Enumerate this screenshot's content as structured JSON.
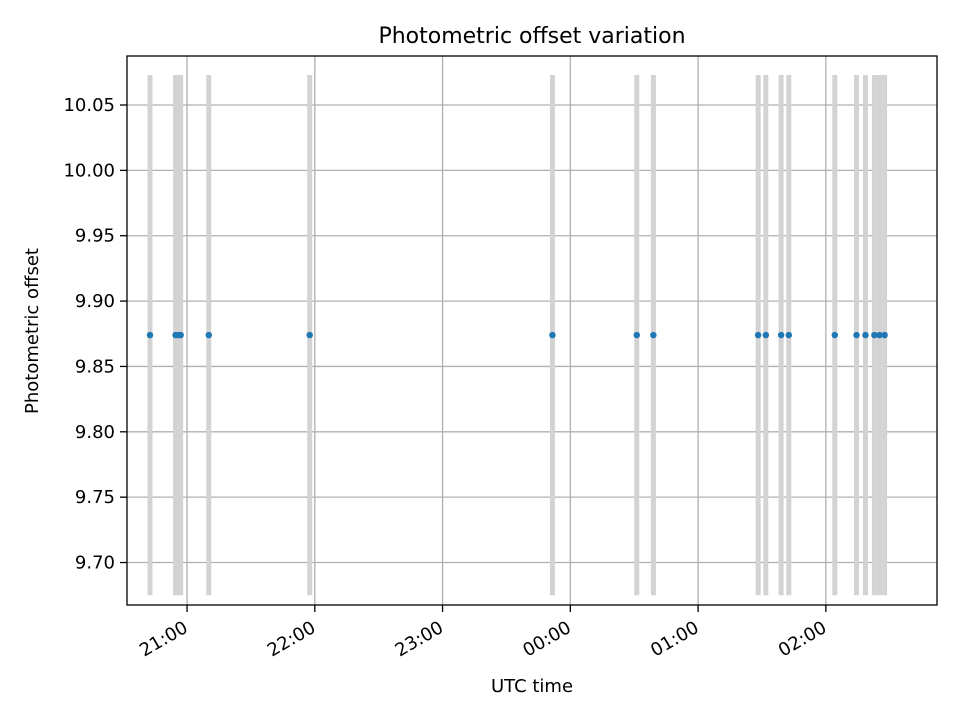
{
  "chart_data": {
    "type": "scatter",
    "title": "Photometric offset variation",
    "xlabel": "UTC time",
    "ylabel": "Photometric offset",
    "xlim_hours": [
      20.53,
      26.87
    ],
    "ylim": [
      9.6675,
      10.0875
    ],
    "xticks": [
      {
        "value": 21.0,
        "label": "21:00"
      },
      {
        "value": 22.0,
        "label": "22:00"
      },
      {
        "value": 23.0,
        "label": "23:00"
      },
      {
        "value": 24.0,
        "label": "00:00"
      },
      {
        "value": 25.0,
        "label": "01:00"
      },
      {
        "value": 26.0,
        "label": "02:00"
      }
    ],
    "yticks": [
      {
        "value": 9.7,
        "label": "9.70"
      },
      {
        "value": 9.75,
        "label": "9.75"
      },
      {
        "value": 9.8,
        "label": "9.80"
      },
      {
        "value": 9.85,
        "label": "9.85"
      },
      {
        "value": 9.9,
        "label": "9.90"
      },
      {
        "value": 9.95,
        "label": "9.95"
      },
      {
        "value": 10.0,
        "label": "10.00"
      },
      {
        "value": 10.05,
        "label": "10.05"
      }
    ],
    "grid": true,
    "band_range": [
      9.675,
      10.073
    ],
    "points": [
      {
        "x": 20.71,
        "y": 9.874
      },
      {
        "x": 20.91,
        "y": 9.874
      },
      {
        "x": 20.93,
        "y": 9.874
      },
      {
        "x": 20.95,
        "y": 9.874
      },
      {
        "x": 21.17,
        "y": 9.874
      },
      {
        "x": 21.96,
        "y": 9.874
      },
      {
        "x": 23.86,
        "y": 9.874
      },
      {
        "x": 24.52,
        "y": 9.874
      },
      {
        "x": 24.65,
        "y": 9.874
      },
      {
        "x": 25.47,
        "y": 9.874
      },
      {
        "x": 25.53,
        "y": 9.874
      },
      {
        "x": 25.65,
        "y": 9.874
      },
      {
        "x": 25.71,
        "y": 9.874
      },
      {
        "x": 26.07,
        "y": 9.874
      },
      {
        "x": 26.24,
        "y": 9.874
      },
      {
        "x": 26.31,
        "y": 9.874
      },
      {
        "x": 26.38,
        "y": 9.874
      },
      {
        "x": 26.42,
        "y": 9.874
      },
      {
        "x": 26.46,
        "y": 9.874
      }
    ],
    "colors": {
      "points": "#1f77b4",
      "bands": "#d3d3d3",
      "grid": "#b0b0b0",
      "axes": "#000000"
    }
  }
}
